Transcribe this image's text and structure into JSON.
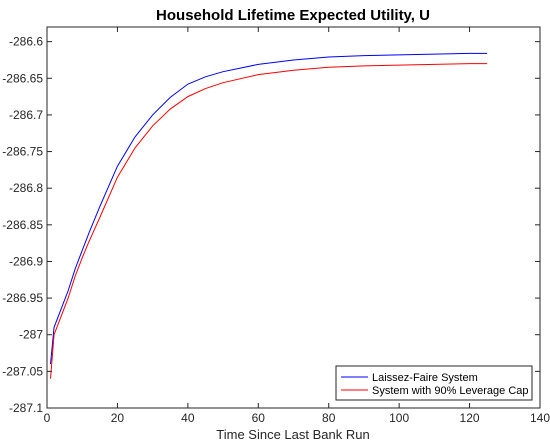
{
  "chart_data": {
    "type": "line",
    "title": "Household Lifetime Expected Utility, U",
    "xlabel": "Time Since Last Bank Run",
    "ylabel": "",
    "xlim": [
      0,
      140
    ],
    "ylim": [
      -287.1,
      -286.58
    ],
    "xticks": [
      0,
      20,
      40,
      60,
      80,
      100,
      120,
      140
    ],
    "yticks": [
      -287.1,
      -287.05,
      -287,
      -286.95,
      -286.9,
      -286.85,
      -286.8,
      -286.75,
      -286.7,
      -286.65,
      -286.6
    ],
    "grid": false,
    "legend_position": "bottom-right",
    "series": [
      {
        "name": "Laissez-Faire System",
        "color": "#0000ff",
        "x": [
          1,
          2,
          4,
          6,
          8,
          10,
          12,
          15,
          20,
          25,
          30,
          35,
          40,
          45,
          50,
          60,
          70,
          80,
          90,
          100,
          110,
          120,
          125
        ],
        "y": [
          -287.04,
          -286.99,
          -286.965,
          -286.94,
          -286.91,
          -286.885,
          -286.86,
          -286.825,
          -286.77,
          -286.73,
          -286.7,
          -286.676,
          -286.658,
          -286.648,
          -286.641,
          -286.631,
          -286.625,
          -286.621,
          -286.619,
          -286.618,
          -286.617,
          -286.616,
          -286.616
        ]
      },
      {
        "name": "System with 90% Leverage Cap",
        "color": "#ff0000",
        "x": [
          1,
          2,
          4,
          6,
          8,
          10,
          12,
          15,
          20,
          25,
          30,
          35,
          40,
          45,
          50,
          60,
          70,
          80,
          90,
          100,
          110,
          120,
          125
        ],
        "y": [
          -287.06,
          -287.0,
          -286.975,
          -286.95,
          -286.92,
          -286.895,
          -286.872,
          -286.84,
          -286.785,
          -286.745,
          -286.715,
          -286.692,
          -286.675,
          -286.664,
          -286.656,
          -286.645,
          -286.639,
          -286.635,
          -286.633,
          -286.632,
          -286.631,
          -286.63,
          -286.63
        ]
      }
    ]
  }
}
